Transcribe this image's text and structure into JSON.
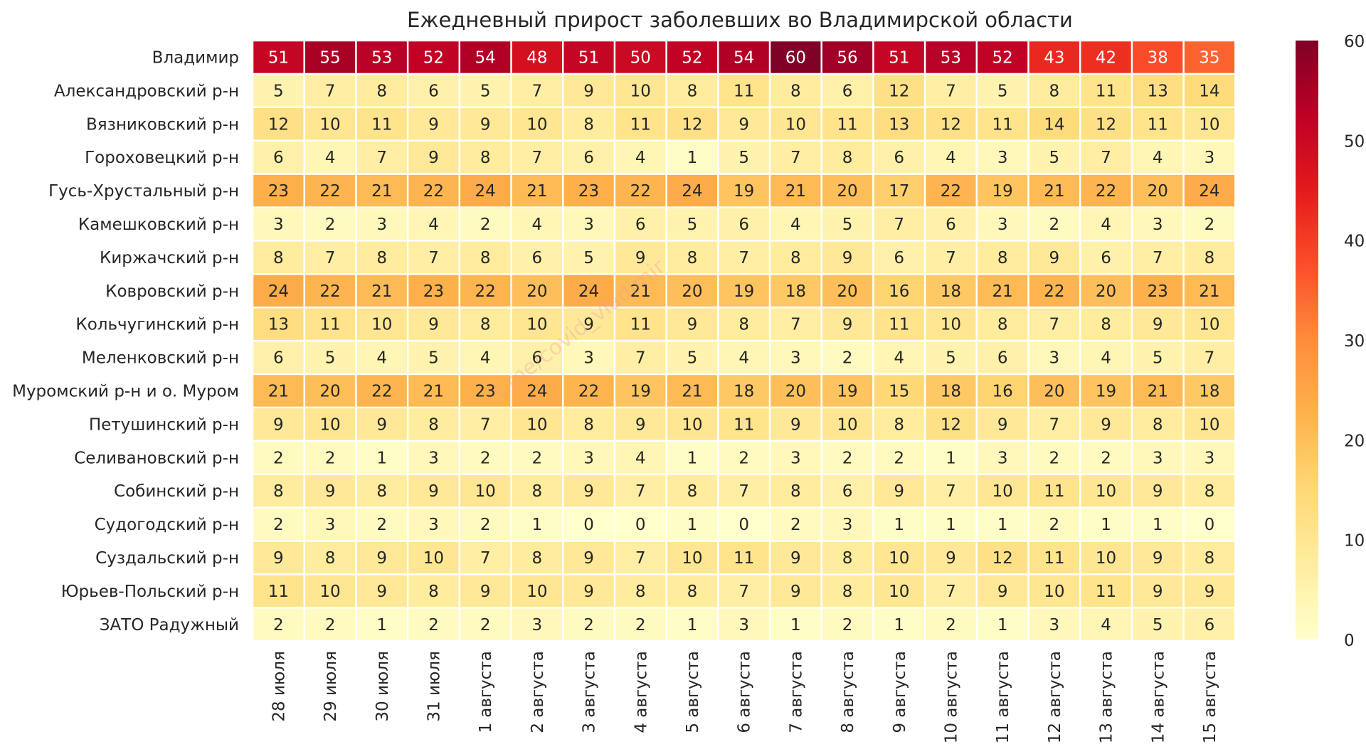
{
  "chart_data": {
    "type": "heatmap",
    "title": "Ежедневный прирост заболевших во Владимирской области",
    "watermark": "t.me/covid_vladimir",
    "x": [
      "28 июля",
      "29 июля",
      "30 июля",
      "31 июля",
      "1 августа",
      "2 августа",
      "3 августа",
      "4 августа",
      "5 августа",
      "6 августа",
      "7 августа",
      "8 августа",
      "9 августа",
      "10 августа",
      "11 августа",
      "12 августа",
      "13 августа",
      "14 августа",
      "15 августа"
    ],
    "y": [
      "Владимир",
      "Александровский р-н",
      "Вязниковский р-н",
      "Гороховецкий р-н",
      "Гусь-Хрустальный р-н",
      "Камешковский р-н",
      "Киржачский р-н",
      "Ковровский р-н",
      "Кольчугинский р-н",
      "Меленковский р-н",
      "Муромский р-н и о. Муром",
      "Петушинский р-н",
      "Селивановский р-н",
      "Собинский р-н",
      "Судогодский р-н",
      "Суздальский р-н",
      "Юрьев-Польский р-н",
      "ЗАТО Радужный"
    ],
    "values": [
      [
        51,
        55,
        53,
        52,
        54,
        48,
        51,
        50,
        52,
        54,
        60,
        56,
        51,
        53,
        52,
        43,
        42,
        38,
        35
      ],
      [
        5,
        7,
        8,
        6,
        5,
        7,
        9,
        10,
        8,
        11,
        8,
        6,
        12,
        7,
        5,
        8,
        11,
        13,
        14
      ],
      [
        12,
        10,
        11,
        9,
        9,
        10,
        8,
        11,
        12,
        9,
        10,
        11,
        13,
        12,
        11,
        14,
        12,
        11,
        10
      ],
      [
        6,
        4,
        7,
        9,
        8,
        7,
        6,
        4,
        1,
        5,
        7,
        8,
        6,
        4,
        3,
        5,
        7,
        4,
        3
      ],
      [
        23,
        22,
        21,
        22,
        24,
        21,
        23,
        22,
        24,
        19,
        21,
        20,
        17,
        22,
        19,
        21,
        22,
        20,
        24
      ],
      [
        3,
        2,
        3,
        4,
        2,
        4,
        3,
        6,
        5,
        6,
        4,
        5,
        7,
        6,
        3,
        2,
        4,
        3,
        2
      ],
      [
        8,
        7,
        8,
        7,
        8,
        6,
        5,
        9,
        8,
        7,
        8,
        9,
        6,
        7,
        8,
        9,
        6,
        7,
        8
      ],
      [
        24,
        22,
        21,
        23,
        22,
        20,
        24,
        21,
        20,
        19,
        18,
        20,
        16,
        18,
        21,
        22,
        20,
        23,
        21
      ],
      [
        13,
        11,
        10,
        9,
        8,
        10,
        9,
        11,
        9,
        8,
        7,
        9,
        11,
        10,
        8,
        7,
        8,
        9,
        10
      ],
      [
        6,
        5,
        4,
        5,
        4,
        6,
        3,
        7,
        5,
        4,
        3,
        2,
        4,
        5,
        6,
        3,
        4,
        5,
        7
      ],
      [
        21,
        20,
        22,
        21,
        23,
        24,
        22,
        19,
        21,
        18,
        20,
        19,
        15,
        18,
        16,
        20,
        19,
        21,
        18
      ],
      [
        9,
        10,
        9,
        8,
        7,
        10,
        8,
        9,
        10,
        11,
        9,
        10,
        8,
        12,
        9,
        7,
        9,
        8,
        10
      ],
      [
        2,
        2,
        1,
        3,
        2,
        2,
        3,
        4,
        1,
        2,
        3,
        2,
        2,
        1,
        3,
        2,
        2,
        3,
        3
      ],
      [
        8,
        9,
        8,
        9,
        10,
        8,
        9,
        7,
        8,
        7,
        8,
        6,
        9,
        7,
        10,
        11,
        10,
        9,
        8
      ],
      [
        2,
        3,
        2,
        3,
        2,
        1,
        0,
        0,
        1,
        0,
        2,
        3,
        1,
        1,
        1,
        2,
        1,
        1,
        0
      ],
      [
        9,
        8,
        9,
        10,
        7,
        8,
        9,
        7,
        10,
        11,
        9,
        8,
        10,
        9,
        12,
        11,
        10,
        9,
        8
      ],
      [
        11,
        10,
        9,
        8,
        9,
        10,
        9,
        8,
        8,
        7,
        9,
        8,
        10,
        7,
        9,
        10,
        11,
        9,
        9
      ],
      [
        2,
        2,
        1,
        2,
        2,
        3,
        2,
        2,
        1,
        3,
        1,
        2,
        1,
        2,
        1,
        3,
        4,
        5,
        6
      ]
    ],
    "vmin": 0,
    "vmax": 60,
    "colorbar_ticks": [
      0,
      10,
      20,
      30,
      40,
      50,
      60
    ],
    "colormap": [
      "#ffffcc",
      "#ffeda0",
      "#fed976",
      "#feb24c",
      "#fd8d3c",
      "#fc4e2a",
      "#e31a1c",
      "#bd0026",
      "#800026"
    ],
    "grid": "white cell borders"
  }
}
